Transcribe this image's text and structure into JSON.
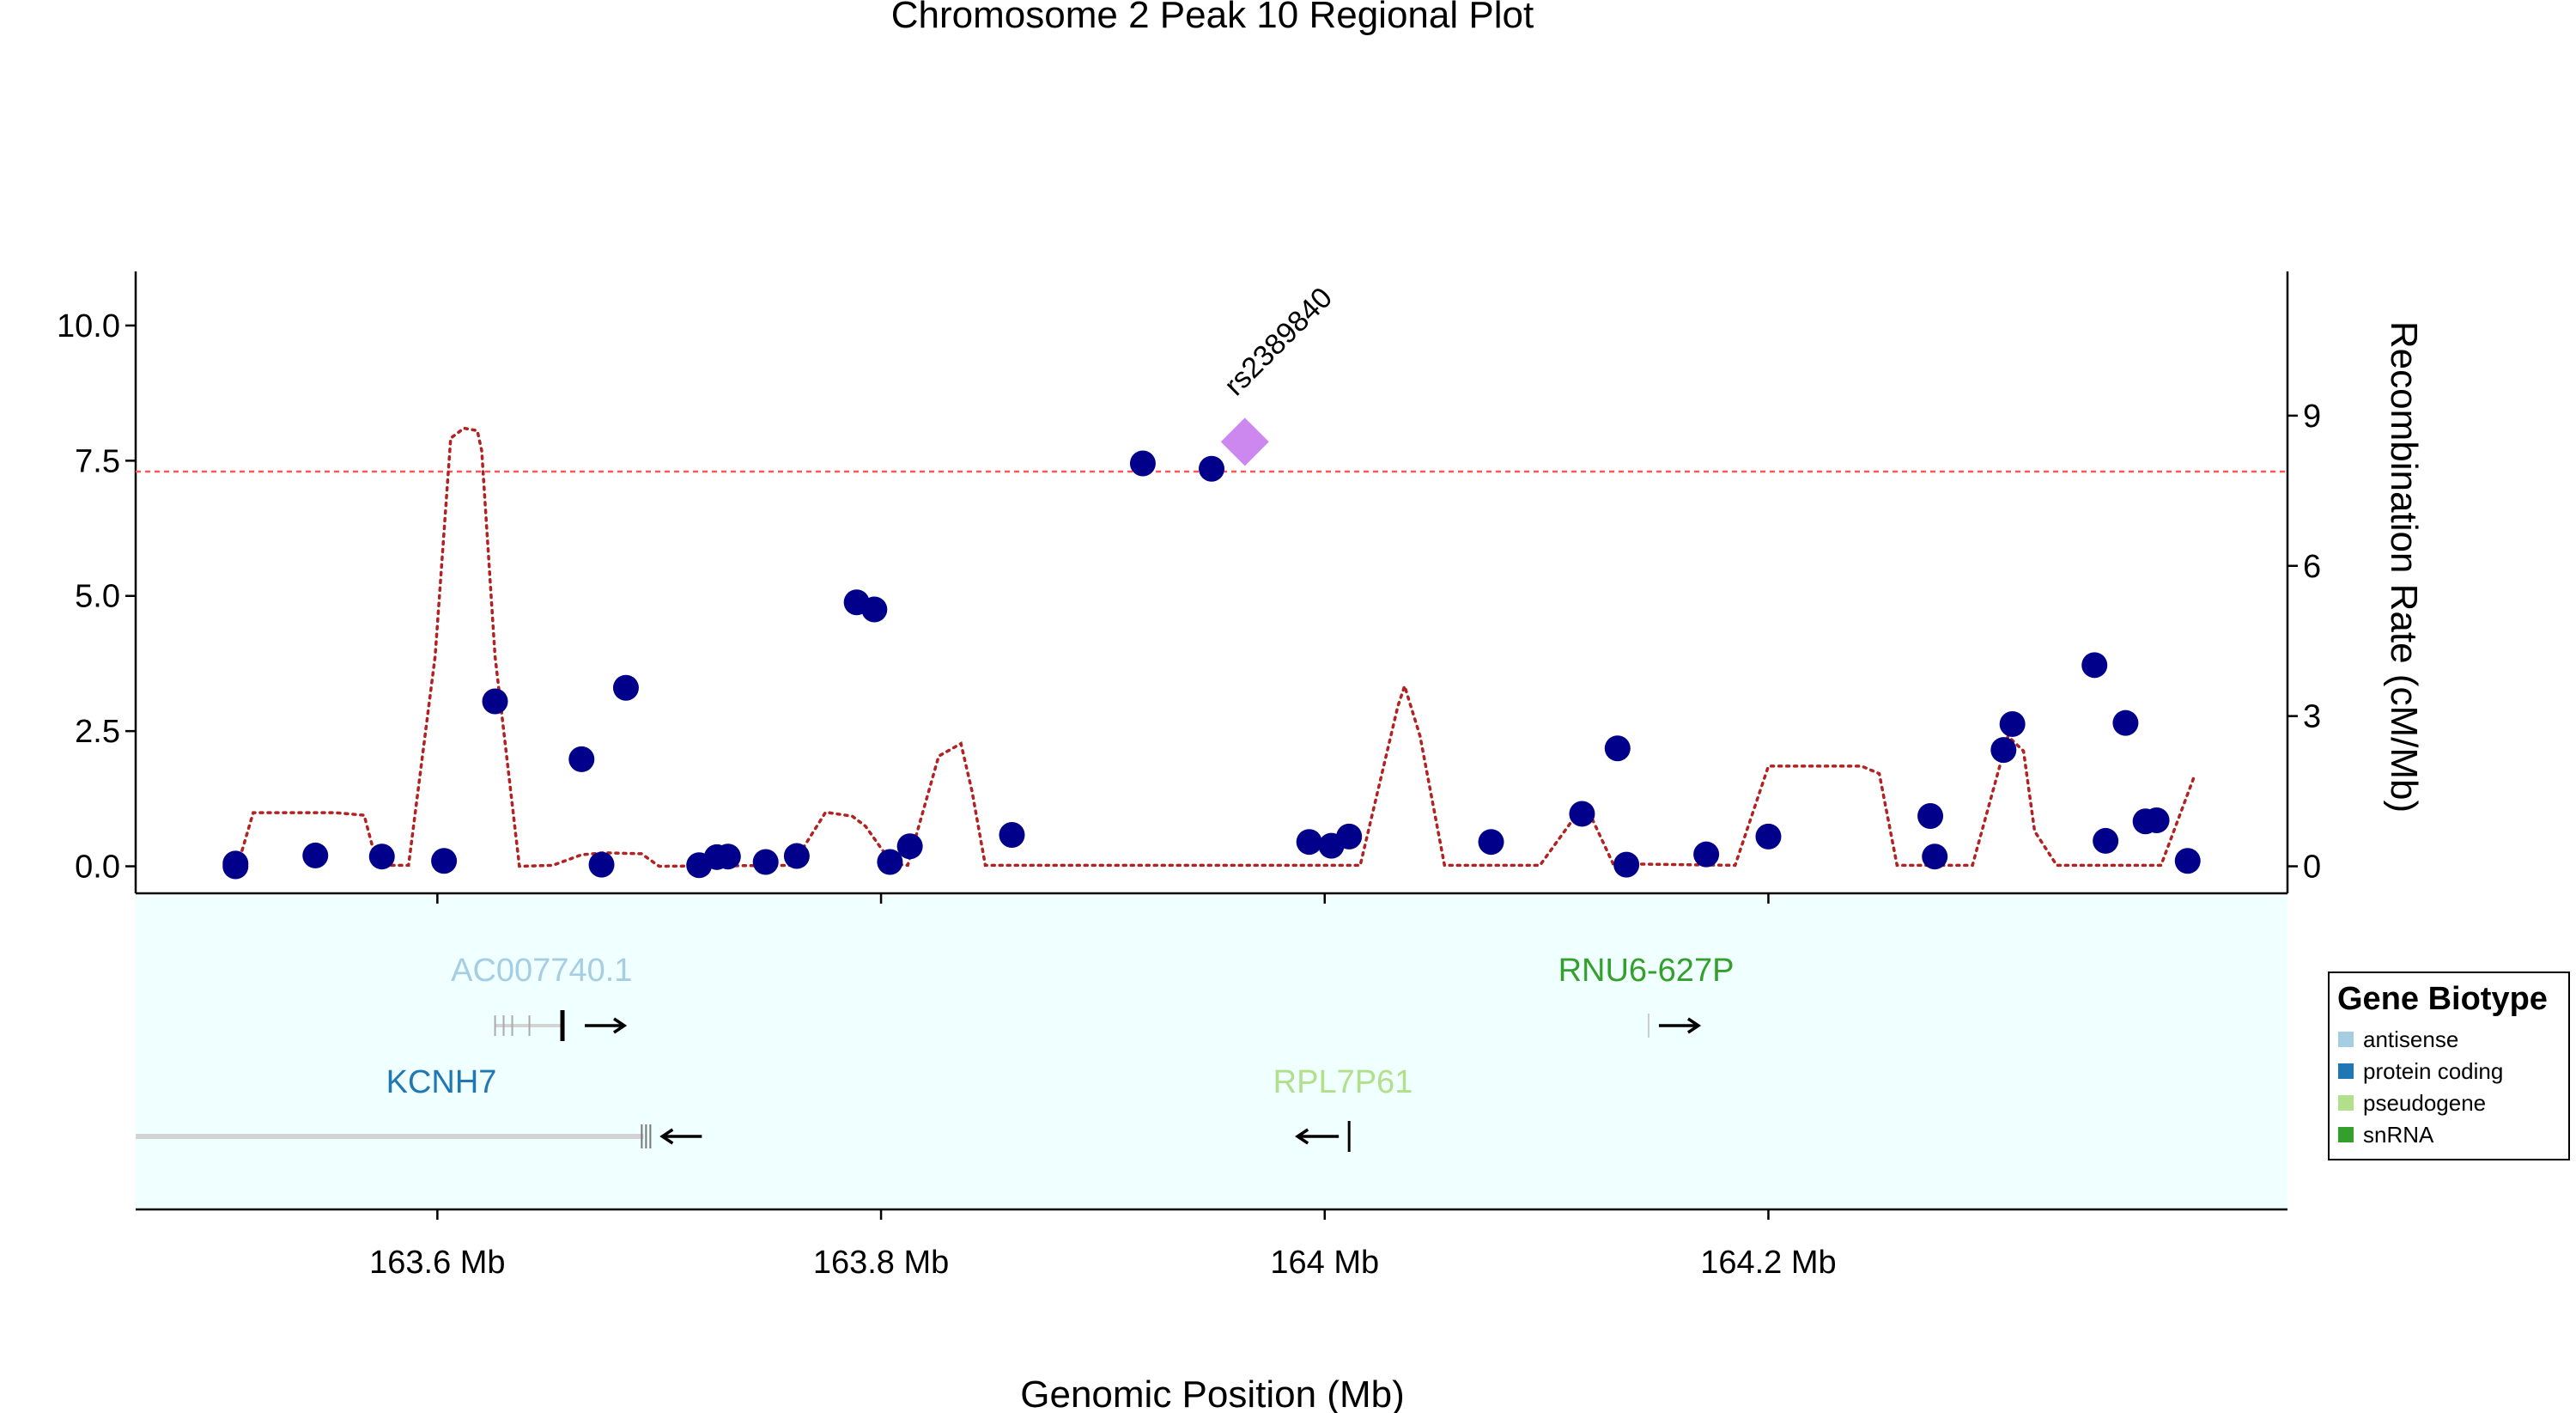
{
  "chart_data": {
    "type": "scatter",
    "title": "Chromosome 2 Peak 10 Regional Plot",
    "xlabel": "Genomic Position (Mb)",
    "ylabel": "",
    "y2label": "Recombination Rate (cM/Mb)",
    "xlim": [
      163.464,
      164.434
    ],
    "ylim": [
      -0.5,
      11.0
    ],
    "y2lim": [
      -0.54,
      11.88
    ],
    "x_ticks": [
      {
        "value": 163.6,
        "label": "163.6 Mb"
      },
      {
        "value": 163.8,
        "label": "163.8 Mb"
      },
      {
        "value": 164.0,
        "label": "164 Mb"
      },
      {
        "value": 164.2,
        "label": "164.2 Mb"
      }
    ],
    "y_ticks": [
      {
        "value": 0.0,
        "label": "0.0"
      },
      {
        "value": 2.5,
        "label": "2.5"
      },
      {
        "value": 5.0,
        "label": "5.0"
      },
      {
        "value": 7.5,
        "label": "7.5"
      },
      {
        "value": 10.0,
        "label": "10.0"
      }
    ],
    "y2_ticks": [
      {
        "value": 0,
        "label": "0"
      },
      {
        "value": 3,
        "label": "3"
      },
      {
        "value": 6,
        "label": "6"
      },
      {
        "value": 9,
        "label": "9"
      }
    ],
    "significance_line": 7.3,
    "series": [
      {
        "color": "#00008b",
        "marker": "circle",
        "points": [
          {
            "x": 163.509,
            "y": 0.05
          },
          {
            "x": 163.509,
            "y": 0.0
          },
          {
            "x": 163.545,
            "y": 0.2
          },
          {
            "x": 163.575,
            "y": 0.18
          },
          {
            "x": 163.603,
            "y": 0.1
          },
          {
            "x": 163.626,
            "y": 3.05
          },
          {
            "x": 163.665,
            "y": 1.98
          },
          {
            "x": 163.674,
            "y": 0.03
          },
          {
            "x": 163.685,
            "y": 3.3
          },
          {
            "x": 163.718,
            "y": 0.02
          },
          {
            "x": 163.726,
            "y": 0.17
          },
          {
            "x": 163.731,
            "y": 0.18
          },
          {
            "x": 163.748,
            "y": 0.08
          },
          {
            "x": 163.762,
            "y": 0.19
          },
          {
            "x": 163.789,
            "y": 4.88
          },
          {
            "x": 163.797,
            "y": 4.75
          },
          {
            "x": 163.804,
            "y": 0.08
          },
          {
            "x": 163.813,
            "y": 0.37
          },
          {
            "x": 163.859,
            "y": 0.58
          },
          {
            "x": 163.918,
            "y": 7.45
          },
          {
            "x": 163.949,
            "y": 7.35
          },
          {
            "x": 163.993,
            "y": 0.45
          },
          {
            "x": 164.003,
            "y": 0.38
          },
          {
            "x": 164.011,
            "y": 0.55
          },
          {
            "x": 164.075,
            "y": 0.45
          },
          {
            "x": 164.116,
            "y": 0.97
          },
          {
            "x": 164.132,
            "y": 2.18
          },
          {
            "x": 164.136,
            "y": 0.03
          },
          {
            "x": 164.172,
            "y": 0.22
          },
          {
            "x": 164.2,
            "y": 0.55
          },
          {
            "x": 164.273,
            "y": 0.93
          },
          {
            "x": 164.275,
            "y": 0.18
          },
          {
            "x": 164.306,
            "y": 2.15
          },
          {
            "x": 164.31,
            "y": 2.63
          },
          {
            "x": 164.347,
            "y": 3.72
          },
          {
            "x": 164.352,
            "y": 0.47
          },
          {
            "x": 164.361,
            "y": 2.65
          },
          {
            "x": 164.37,
            "y": 0.83
          },
          {
            "x": 164.375,
            "y": 0.85
          },
          {
            "x": 164.389,
            "y": 0.1
          }
        ]
      },
      {
        "color": "#cc88ee",
        "marker": "diamond",
        "label": "rs2389840",
        "points": [
          {
            "x": 163.964,
            "y": 7.85
          }
        ]
      }
    ],
    "recombination": {
      "color": "#b22222",
      "style": "dotted",
      "points": [
        {
          "x": 163.51,
          "y": 0.02
        },
        {
          "x": 163.517,
          "y": 1.07
        },
        {
          "x": 163.554,
          "y": 1.07
        },
        {
          "x": 163.567,
          "y": 1.02
        },
        {
          "x": 163.573,
          "y": 0.02
        },
        {
          "x": 163.587,
          "y": 0.02
        },
        {
          "x": 163.599,
          "y": 4.2
        },
        {
          "x": 163.606,
          "y": 8.55
        },
        {
          "x": 163.612,
          "y": 8.75
        },
        {
          "x": 163.618,
          "y": 8.7
        },
        {
          "x": 163.62,
          "y": 8.3
        },
        {
          "x": 163.626,
          "y": 4.2
        },
        {
          "x": 163.637,
          "y": 0.0
        },
        {
          "x": 163.652,
          "y": 0.02
        },
        {
          "x": 163.665,
          "y": 0.23
        },
        {
          "x": 163.675,
          "y": 0.27
        },
        {
          "x": 163.692,
          "y": 0.25
        },
        {
          "x": 163.7,
          "y": 0.0
        },
        {
          "x": 163.76,
          "y": 0.02
        },
        {
          "x": 163.775,
          "y": 1.08
        },
        {
          "x": 163.787,
          "y": 1.0
        },
        {
          "x": 163.793,
          "y": 0.8
        },
        {
          "x": 163.805,
          "y": 0.05
        },
        {
          "x": 163.812,
          "y": 0.02
        },
        {
          "x": 163.826,
          "y": 2.2
        },
        {
          "x": 163.836,
          "y": 2.45
        },
        {
          "x": 163.841,
          "y": 1.5
        },
        {
          "x": 163.847,
          "y": 0.02
        },
        {
          "x": 164.016,
          "y": 0.02
        },
        {
          "x": 164.033,
          "y": 3.2
        },
        {
          "x": 164.036,
          "y": 3.6
        },
        {
          "x": 164.043,
          "y": 2.6
        },
        {
          "x": 164.054,
          "y": 0.02
        },
        {
          "x": 164.097,
          "y": 0.02
        },
        {
          "x": 164.113,
          "y": 1.0
        },
        {
          "x": 164.12,
          "y": 1.0
        },
        {
          "x": 164.13,
          "y": 0.05
        },
        {
          "x": 164.185,
          "y": 0.02
        },
        {
          "x": 164.2,
          "y": 2.0
        },
        {
          "x": 164.242,
          "y": 2.0
        },
        {
          "x": 164.25,
          "y": 1.85
        },
        {
          "x": 164.258,
          "y": 0.02
        },
        {
          "x": 164.292,
          "y": 0.02
        },
        {
          "x": 164.308,
          "y": 2.6
        },
        {
          "x": 164.315,
          "y": 2.3
        },
        {
          "x": 164.32,
          "y": 0.7
        },
        {
          "x": 164.33,
          "y": 0.02
        },
        {
          "x": 164.377,
          "y": 0.02
        },
        {
          "x": 164.392,
          "y": 1.8
        }
      ]
    },
    "genes_panel": {
      "genes": [
        {
          "name": "AC007740.1",
          "biotype": "antisense",
          "color": "#a6cee3",
          "start": 163.626,
          "end": 163.668,
          "strand": "+"
        },
        {
          "name": "KCNH7",
          "biotype": "protein coding",
          "color": "#1f78b4",
          "start": 163.464,
          "end": 163.696,
          "strand": "-"
        },
        {
          "name": "RNU6-627P",
          "biotype": "snRNA",
          "color": "#33a02c",
          "start": 164.146,
          "end": 164.147,
          "strand": "+"
        },
        {
          "name": "RPL7P61",
          "biotype": "pseudogene",
          "color": "#b2df8a",
          "start": 164.011,
          "end": 164.012,
          "strand": "-"
        }
      ]
    },
    "legend": {
      "title": "Gene Biotype",
      "placement": "right",
      "items": [
        {
          "label": "antisense",
          "color": "#a6cee3"
        },
        {
          "label": "protein coding",
          "color": "#1f78b4"
        },
        {
          "label": "pseudogene",
          "color": "#b2df8a"
        },
        {
          "label": "snRNA",
          "color": "#33a02c"
        }
      ]
    }
  }
}
